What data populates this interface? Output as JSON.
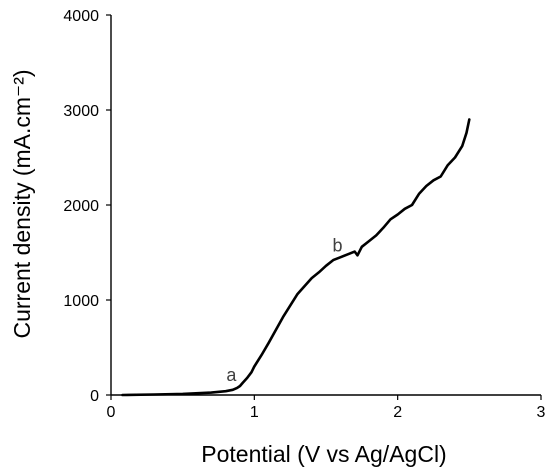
{
  "chart_data": {
    "type": "line",
    "title": "",
    "xlabel": "Potential (V vs Ag/AgCl)",
    "ylabel": "Current density (mA.cm⁻²)",
    "xlim": [
      0,
      3
    ],
    "ylim": [
      0,
      4000
    ],
    "xticks": [
      0,
      1,
      2,
      3
    ],
    "yticks": [
      0,
      1000,
      2000,
      3000,
      4000
    ],
    "grid": false,
    "legend": "none",
    "line_color": "#000000",
    "series": [
      {
        "x": [
          0.08,
          0.3,
          0.5,
          0.7,
          0.8,
          0.85,
          0.88,
          0.9,
          0.92,
          0.95,
          0.98,
          1.0,
          1.05,
          1.1,
          1.2,
          1.3,
          1.4,
          1.45,
          1.5,
          1.55,
          1.6,
          1.65,
          1.7,
          1.72,
          1.75,
          1.8,
          1.85,
          1.9,
          1.95,
          2.0,
          2.05,
          2.1,
          2.15,
          2.2,
          2.25,
          2.3,
          2.35,
          2.4,
          2.45,
          2.48,
          2.5
        ],
        "y": [
          0,
          5,
          12,
          25,
          40,
          55,
          75,
          95,
          130,
          180,
          240,
          300,
          420,
          550,
          820,
          1060,
          1230,
          1290,
          1360,
          1420,
          1450,
          1480,
          1510,
          1470,
          1560,
          1620,
          1680,
          1760,
          1850,
          1900,
          1960,
          2000,
          2120,
          2200,
          2260,
          2300,
          2420,
          2500,
          2620,
          2760,
          2900
        ]
      }
    ],
    "annotations": [
      {
        "text": "a",
        "x": 0.84,
        "y": 150
      },
      {
        "text": "b",
        "x": 1.58,
        "y": 1510
      }
    ]
  }
}
